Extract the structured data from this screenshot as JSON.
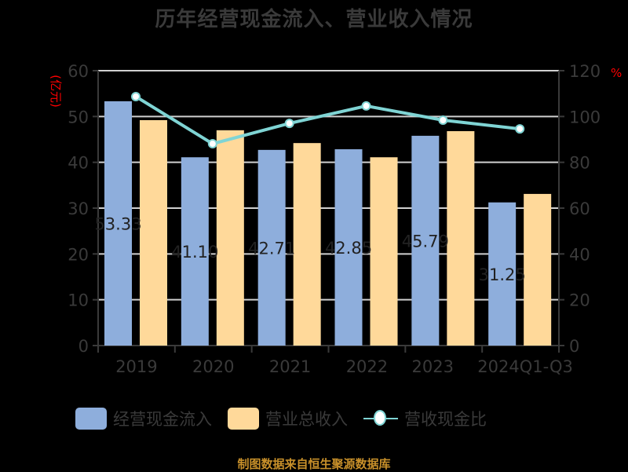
{
  "title": "历年经营现金流入、营业收入情况",
  "left_unit": "(亿元)",
  "right_unit": "%",
  "colors": {
    "cash_inflow": "#8eaedc",
    "revenue": "#ffd99a",
    "ratio": "#7fd4d4",
    "source": "#c8902a"
  },
  "legend": {
    "cash_inflow": "经营现金流入",
    "revenue": "营业总收入",
    "ratio": "营收现金比"
  },
  "source": "制图数据来自恒生聚源数据库",
  "chart_data": {
    "type": "bar",
    "title": "历年经营现金流入、营业收入情况",
    "categories": [
      "2019",
      "2020",
      "2021",
      "2022",
      "2023",
      "2024Q1-Q3"
    ],
    "series": [
      {
        "name": "经营现金流入",
        "type": "bar",
        "axis": "left",
        "values": [
          53.33,
          41.1,
          42.71,
          42.85,
          45.79,
          31.25
        ],
        "labels": [
          "53.33",
          "41.10",
          "42.71",
          "42.85",
          "45.79",
          "31.25"
        ]
      },
      {
        "name": "营业总收入",
        "type": "bar",
        "axis": "left",
        "values": [
          49.2,
          47.0,
          44.2,
          41.1,
          46.8,
          33.1
        ]
      },
      {
        "name": "营收现金比",
        "type": "line",
        "axis": "right",
        "values": [
          108.7,
          88.1,
          97.0,
          104.6,
          98.4,
          94.6
        ]
      }
    ],
    "ylabel": "(亿元)",
    "y2label": "%",
    "ylim": [
      0,
      60
    ],
    "y2lim": [
      0,
      120
    ],
    "yticks": [
      "0",
      "10",
      "20",
      "30",
      "40",
      "50",
      "60"
    ],
    "y2ticks": [
      "0",
      "20",
      "40",
      "60",
      "80",
      "100",
      "120"
    ],
    "grid": true,
    "legend_position": "bottom"
  }
}
